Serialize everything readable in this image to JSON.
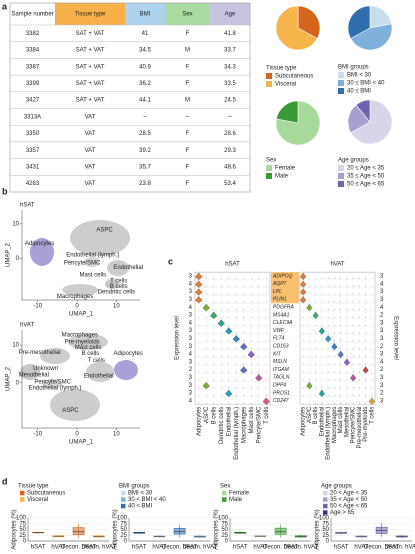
{
  "panel_labels": [
    "a",
    "b",
    "c",
    "d"
  ],
  "table": {
    "header": [
      "Sample number",
      "Tissue type",
      "BMI",
      "Sex",
      "Age"
    ],
    "header_colors": [
      "#ffffff",
      "#f8b04a",
      "#aed3ef",
      "#a8dca0",
      "#c9c3e2"
    ],
    "rows": [
      [
        "3382",
        "SAT + VAT",
        "41",
        "F",
        "41.8"
      ],
      [
        "3384",
        "SAT + VAT",
        "34.5",
        "M",
        "33.7"
      ],
      [
        "3387",
        "SAT + VAT",
        "40.9",
        "F",
        "34.3"
      ],
      [
        "3399",
        "SAT + VAT",
        "36.2",
        "F",
        "33.5"
      ],
      [
        "3427",
        "SAT + VAT",
        "44.1",
        "M",
        "24.5"
      ],
      [
        "3313A",
        "VAT",
        "–",
        "–",
        "–"
      ],
      [
        "3350",
        "VAT",
        "28.5",
        "F",
        "28.6"
      ],
      [
        "3357",
        "VAT",
        "39.2",
        "F",
        "29.3"
      ],
      [
        "3431",
        "VAT",
        "35.7",
        "F",
        "48.6"
      ],
      [
        "4263",
        "VAT",
        "23.8",
        "F",
        "53.4"
      ]
    ]
  },
  "chart_data": [
    {
      "type": "pie",
      "title": "Tissue type",
      "categories": [
        "Subcutaneous",
        "Visceral"
      ],
      "values": [
        33,
        67
      ],
      "colors": [
        "#d4651d",
        "#f6b54a"
      ]
    },
    {
      "type": "pie",
      "title": "BMI groups",
      "categories": [
        "BMI < 30",
        "30 ≤ BMI < 40",
        "40 ≤ BMI"
      ],
      "values": [
        22,
        45,
        33
      ],
      "colors": [
        "#c9ddf0",
        "#7fb0dc",
        "#2f6fb0"
      ]
    },
    {
      "type": "pie",
      "title": "Sex",
      "categories": [
        "Female",
        "Male"
      ],
      "values": [
        78,
        22
      ],
      "colors": [
        "#a6d99a",
        "#3a9a35"
      ]
    },
    {
      "type": "pie",
      "title": "Age groups",
      "categories": [
        "20 ≤ Age < 35",
        "35 ≤ Age < 50",
        "50 ≤ Age < 65"
      ],
      "values": [
        67,
        22,
        11
      ],
      "colors": [
        "#d9d4ea",
        "#a79fd0",
        "#6f62b0"
      ]
    },
    {
      "type": "box",
      "legend_title": "Tissue type",
      "series": [
        {
          "name": "Subcutaneous",
          "color": "#d4651d"
        },
        {
          "name": "Visceral",
          "color": "#f6b54a"
        }
      ],
      "categories": [
        "hSAT",
        "hVAT",
        "Decon. hSAT",
        "Decon. hVAT"
      ],
      "boxes": [
        [
          33,
          35,
          37,
          38,
          40
        ],
        [
          14,
          18,
          21,
          23,
          26
        ],
        [
          12,
          28,
          40,
          58,
          75
        ],
        [
          10,
          17,
          20,
          23,
          30
        ]
      ],
      "box_colors": [
        "#d4651d",
        "#f6b54a",
        "#d4651d",
        "#f6b54a"
      ],
      "y_label": "Adipocytes (%)",
      "ylim": [
        0,
        100
      ],
      "yticks": [
        0,
        25,
        50,
        75,
        100
      ]
    },
    {
      "type": "box",
      "legend_title": "BMI groups",
      "series": [
        {
          "name": "BMI < 30",
          "color": "#c9ddf0"
        },
        {
          "name": "30 < BMI < 40",
          "color": "#7fb0dc"
        },
        {
          "name": "40 < BMI",
          "color": "#2f6fb0"
        }
      ],
      "categories": [
        "hSAT",
        "hVAT",
        "Decon. hSAT",
        "Decon. hVAT"
      ],
      "boxes": [
        [
          30,
          33,
          36,
          38,
          41
        ],
        [
          14,
          18,
          20,
          22,
          25
        ],
        [
          15,
          30,
          42,
          55,
          70
        ],
        [
          10,
          16,
          19,
          22,
          28
        ]
      ],
      "box_colors": [
        "#2f6fb0",
        "#7fb0dc",
        "#2f6fb0",
        "#7fb0dc"
      ],
      "y_label": "Adipocytes (%)",
      "ylim": [
        0,
        100
      ],
      "yticks": [
        0,
        25,
        50,
        75,
        100
      ]
    },
    {
      "type": "box",
      "legend_title": "Sex",
      "series": [
        {
          "name": "Female",
          "color": "#a6d99a"
        },
        {
          "name": "Male",
          "color": "#3a9a35"
        }
      ],
      "categories": [
        "hSAT",
        "hVAT",
        "Decon. hSAT",
        "Decon. hVAT"
      ],
      "boxes": [
        [
          30,
          33,
          36,
          38,
          40
        ],
        [
          15,
          18,
          21,
          23,
          26
        ],
        [
          15,
          29,
          40,
          56,
          72
        ],
        [
          12,
          17,
          20,
          23,
          29
        ]
      ],
      "box_colors": [
        "#3a9a35",
        "#a6d99a",
        "#3a9a35",
        "#3a9a35"
      ],
      "y_label": "Adipocytes (%)",
      "ylim": [
        0,
        100
      ],
      "yticks": [
        0,
        25,
        50,
        75,
        100
      ]
    },
    {
      "type": "box",
      "legend_title": "Age groups",
      "series": [
        {
          "name": "20 < Age < 35",
          "color": "#d9d4ea"
        },
        {
          "name": "35 < Age < 50",
          "color": "#a79fd0"
        },
        {
          "name": "50 < Age < 65",
          "color": "#6f62b0"
        },
        {
          "name": "Age > 65",
          "color": "#3d2f8a"
        }
      ],
      "categories": [
        "hSAT",
        "hVAT",
        "Decon. hSAT",
        "Decon. hVAT"
      ],
      "boxes": [
        [
          30,
          33,
          35,
          37,
          40
        ],
        [
          14,
          17,
          20,
          22,
          26
        ],
        [
          18,
          32,
          45,
          60,
          78
        ],
        [
          12,
          17,
          20,
          22,
          27
        ]
      ],
      "box_colors": [
        "#6f62b0",
        "#a79fd0",
        "#6f62b0",
        "#6f62b0"
      ],
      "y_label": "Adipocytes (%)",
      "ylim": [
        0,
        100
      ],
      "yticks": [
        0,
        25,
        50,
        75,
        100
      ]
    }
  ],
  "umap": {
    "x_label": "UMAP_1",
    "y_label": "UMAP_2",
    "xlim": [
      -14,
      16
    ],
    "ylim": [
      -12,
      14
    ],
    "xticks": [
      -10,
      0,
      10
    ],
    "yticks": [
      0,
      10
    ],
    "plots": [
      {
        "title": "hSAT",
        "labels": [
          "ASPC",
          "Adipocytes",
          "Endothelial (lymph.)",
          "Pericyte/SMC",
          "Endothelial",
          "Mast cells",
          "T cells",
          "B cells",
          "Dendritic cells",
          "Macrophages"
        ]
      },
      {
        "title": "hVAT",
        "labels": [
          "Macrophages",
          "Pre-myeloids",
          "Mast cells",
          "B cells",
          "Pre-mesothelial",
          "T cells",
          "Endothelial",
          "Adipocytes",
          "Mesothelial",
          "Unknown",
          "Pericyte/SMC",
          "Endothelial (lymph.)",
          "ASPC"
        ]
      }
    ]
  },
  "violin": {
    "y_label": "Expression level",
    "genes": [
      "ADIPOQ",
      "AQP7",
      "LPL",
      "PLIN1",
      "PDGFRA",
      "MS4A1",
      "CLEC9A",
      "VWF",
      "FLT4",
      "CD163",
      "KIT",
      "MSLN",
      "ITGAM",
      "TAGLN",
      "DPP4",
      "PROS1",
      "CD247"
    ],
    "scale_left": [
      3,
      4,
      3,
      3,
      4,
      3,
      4,
      3,
      3,
      3,
      4,
      3,
      2,
      3,
      3,
      3,
      4
    ],
    "scale_right": [
      3,
      4,
      3,
      3,
      4,
      2,
      3,
      3,
      3,
      2,
      3,
      4,
      2,
      3,
      3,
      2,
      3
    ],
    "groups": [
      {
        "title": "hSAT",
        "cell_types": [
          "Adipocytes",
          "ASPC",
          "B cells",
          "Dendritic cells",
          "Endothelial",
          "Endothelial (lymph.)",
          "Macrophages",
          "Mast cells",
          "Pericyte/SMC",
          "T cells"
        ]
      },
      {
        "title": "hVAT",
        "cell_types": [
          "Adipocytes",
          "ASPC",
          "B cells",
          "Endothelial",
          "Endothelial (lymph.)",
          "Macrophages",
          "Mast cells",
          "Mesothelial",
          "Pericyte/SMC",
          "Pre-mesothelial",
          "Pre-myeloids",
          "T cells"
        ]
      }
    ]
  }
}
